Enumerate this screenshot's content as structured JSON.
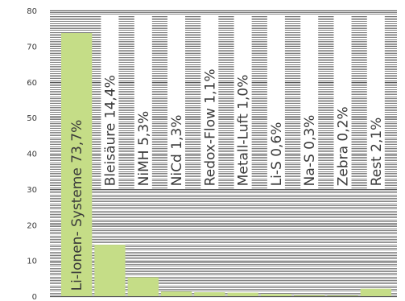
{
  "chart_data": {
    "type": "bar",
    "categories": [
      "Li-Ionen- Systeme",
      "Bleisäure",
      "NiMH",
      "NiCd",
      "Redox-Flow",
      "Metall-Luft",
      "Li-S",
      "Na-S",
      "Zebra",
      "Rest"
    ],
    "values": [
      73.7,
      14.4,
      5.3,
      1.3,
      1.1,
      1.0,
      0.6,
      0.3,
      0.2,
      2.1
    ],
    "data_labels": [
      "Li-Ionen- Systeme 73,7%",
      "Bleisäure 14,4%",
      "NiMH 5,3%",
      "NiCd 1,3%",
      "Redox-Flow 1,1%",
      "Metall-Luft 1,0%",
      "Li-S 0,6%",
      "Na-S 0,3%",
      "Zebra 0,2%",
      "Rest 2,1%"
    ],
    "y_ticks": [
      "0",
      "10",
      "20",
      "30",
      "40",
      "50",
      "60",
      "70",
      "80"
    ],
    "ylim": [
      0,
      80
    ],
    "title": "",
    "xlabel": "",
    "ylabel": "",
    "grid": true,
    "legend": "none",
    "bar_color": "#c5dd87",
    "grid_color": "#555555",
    "text_color": "#3a3a3a"
  }
}
